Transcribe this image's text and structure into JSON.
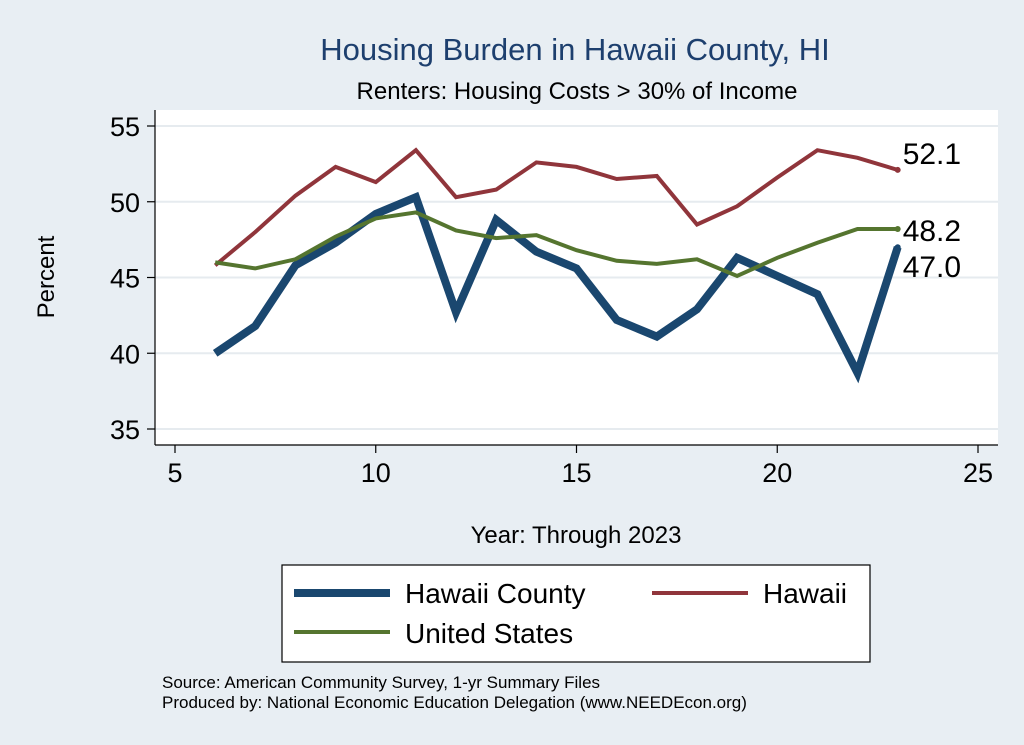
{
  "chart_data": {
    "type": "line",
    "title": "Housing Burden in Hawaii County, HI",
    "subtitle": "Renters: Housing Costs > 30% of Income",
    "xlabel": "Year: Through 2023",
    "ylabel": "Percent",
    "xlim": [
      5,
      25
    ],
    "ylim": [
      35,
      55
    ],
    "xticks": [
      5,
      10,
      15,
      20,
      25
    ],
    "yticks": [
      35,
      40,
      45,
      50,
      55
    ],
    "grid": true,
    "series": [
      {
        "name": "Hawaii County",
        "color": "#1a476f",
        "x": [
          6,
          7,
          8,
          9,
          10,
          11,
          12,
          13,
          14,
          15,
          16,
          17,
          18,
          19,
          20,
          21,
          22,
          23
        ],
        "values": [
          40.0,
          41.8,
          45.8,
          47.3,
          49.2,
          50.3,
          42.7,
          48.8,
          46.7,
          45.6,
          42.2,
          41.1,
          42.9,
          46.3,
          45.1,
          43.9,
          38.7,
          47.0
        ],
        "end_label": "47.0"
      },
      {
        "name": "Hawaii",
        "color": "#90353b",
        "x": [
          6,
          7,
          8,
          9,
          10,
          11,
          12,
          13,
          14,
          15,
          16,
          17,
          18,
          19,
          20,
          21,
          22,
          23
        ],
        "values": [
          45.8,
          48.0,
          50.4,
          52.3,
          51.3,
          53.4,
          50.3,
          50.8,
          52.6,
          52.3,
          51.5,
          51.7,
          48.5,
          49.7,
          51.6,
          53.4,
          52.9,
          52.1
        ],
        "end_label": "52.1"
      },
      {
        "name": "United States",
        "color": "#55752f",
        "x": [
          6,
          7,
          8,
          9,
          10,
          11,
          12,
          13,
          14,
          15,
          16,
          17,
          18,
          19,
          20,
          21,
          22,
          23
        ],
        "values": [
          46.0,
          45.6,
          46.2,
          47.7,
          48.9,
          49.3,
          48.1,
          47.6,
          47.8,
          46.8,
          46.1,
          45.9,
          46.2,
          45.1,
          46.3,
          47.3,
          48.2,
          48.2
        ],
        "end_label": "48.2"
      }
    ],
    "legend": {
      "items": [
        "Hawaii County",
        "Hawaii",
        "United States"
      ]
    },
    "source_lines": [
      "Source: American Community Survey, 1-yr Summary Files",
      "Produced by: National Economic Education Delegation (www.NEEDEcon.org)"
    ]
  }
}
